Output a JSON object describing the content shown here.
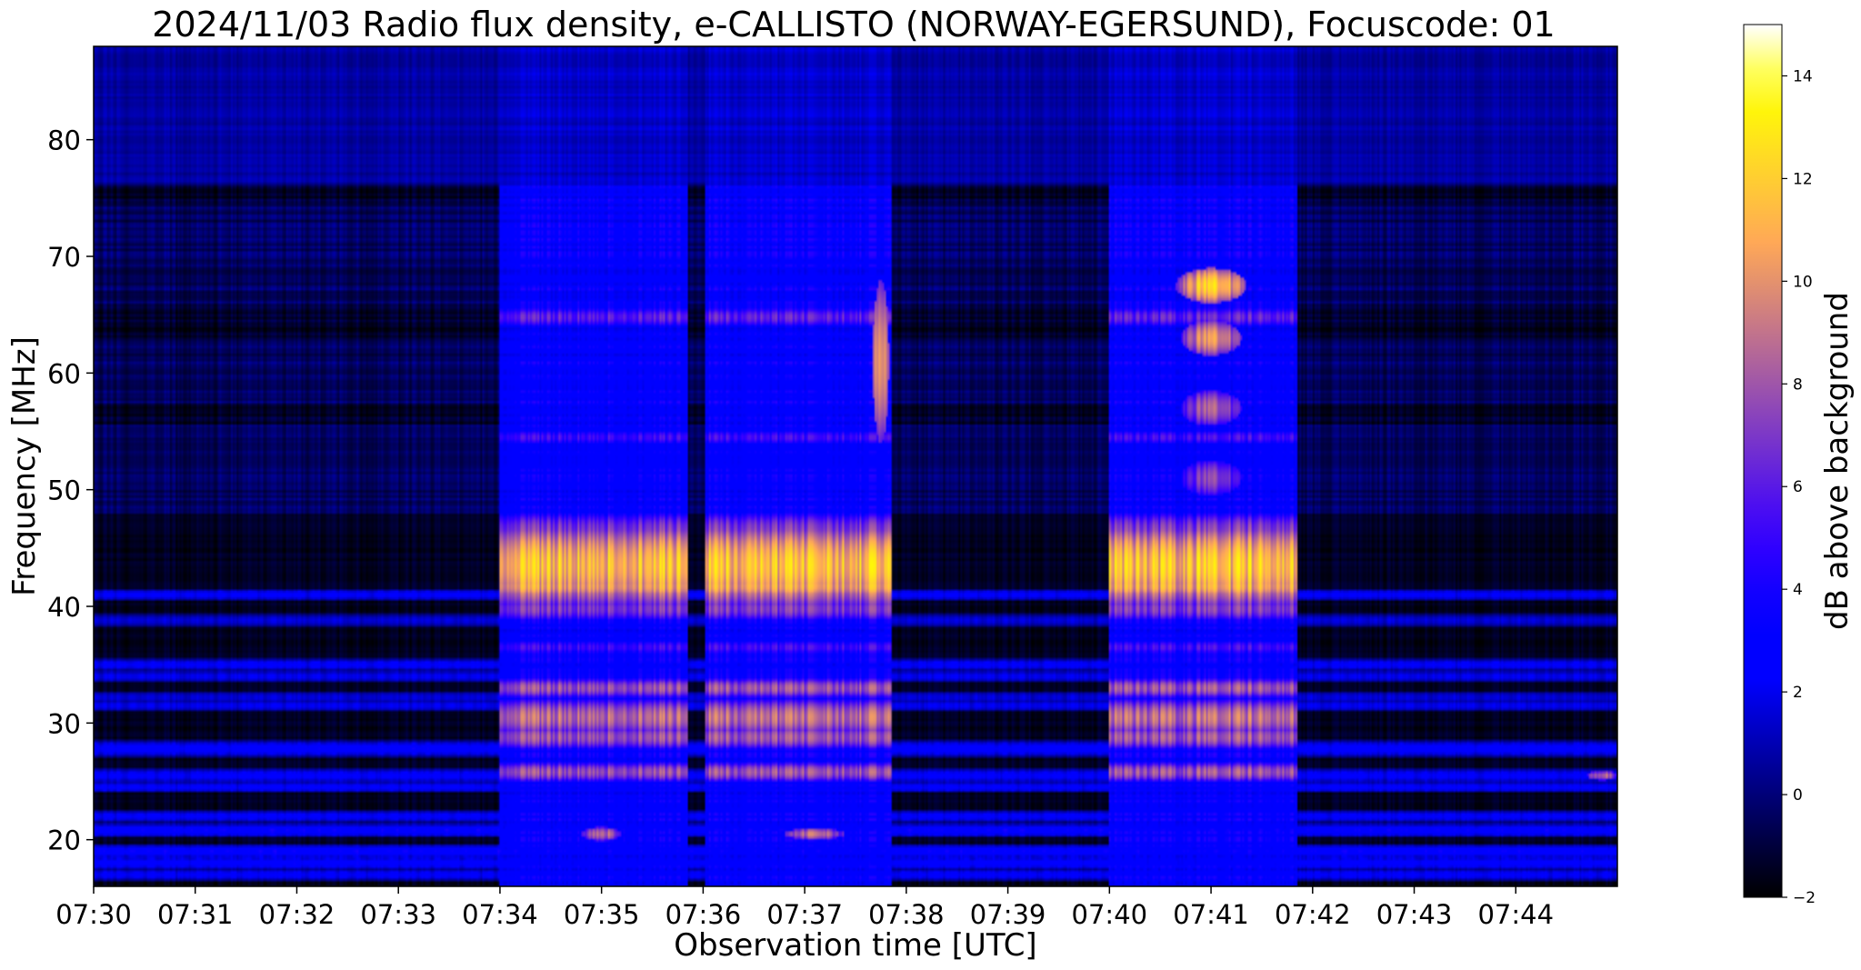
{
  "chart_data": {
    "type": "heatmap",
    "title": "2024/11/03  Radio flux density, e-CALLISTO (NORWAY-EGERSUND), Focuscode: 01",
    "xlabel": "Observation time [UTC]",
    "ylabel": "Frequency [MHz]",
    "colorbar_label": "dB above background",
    "colormap": "gnuplot2",
    "xlim_minutes": [
      450,
      465
    ],
    "ylim": [
      16,
      88
    ],
    "clim": [
      -2,
      15
    ],
    "x_ticks": [
      {
        "value": 450,
        "label": "07:30"
      },
      {
        "value": 451,
        "label": "07:31"
      },
      {
        "value": 452,
        "label": "07:32"
      },
      {
        "value": 453,
        "label": "07:33"
      },
      {
        "value": 454,
        "label": "07:34"
      },
      {
        "value": 455,
        "label": "07:35"
      },
      {
        "value": 456,
        "label": "07:36"
      },
      {
        "value": 457,
        "label": "07:37"
      },
      {
        "value": 458,
        "label": "07:38"
      },
      {
        "value": 459,
        "label": "07:39"
      },
      {
        "value": 460,
        "label": "07:40"
      },
      {
        "value": 461,
        "label": "07:41"
      },
      {
        "value": 462,
        "label": "07:42"
      },
      {
        "value": 463,
        "label": "07:43"
      },
      {
        "value": 464,
        "label": "07:44"
      }
    ],
    "y_ticks": [
      20,
      30,
      40,
      50,
      60,
      70,
      80
    ],
    "colorbar_ticks": [
      -2,
      0,
      2,
      4,
      6,
      8,
      10,
      12,
      14
    ],
    "receiver_on_intervals": [
      {
        "start": 454.0,
        "end": 455.85
      },
      {
        "start": 456.02,
        "end": 457.85
      },
      {
        "start": 460.0,
        "end": 461.85
      }
    ],
    "emission_bands_mhz": [
      {
        "center": 43.5,
        "width": 3.5,
        "db_on": 13
      },
      {
        "center": 41.8,
        "width": 1.2,
        "db_on": 12
      },
      {
        "center": 46.5,
        "width": 1.5,
        "db_on": 8
      },
      {
        "center": 39.8,
        "width": 1.0,
        "db_on": 8
      },
      {
        "center": 33.0,
        "width": 0.8,
        "db_on": 9
      },
      {
        "center": 30.5,
        "width": 1.5,
        "db_on": 10
      },
      {
        "center": 28.8,
        "width": 1.0,
        "db_on": 9
      },
      {
        "center": 25.8,
        "width": 0.8,
        "db_on": 9
      },
      {
        "center": 64.8,
        "width": 0.8,
        "db_on": 7
      },
      {
        "center": 54.5,
        "width": 0.6,
        "db_on": 6
      },
      {
        "center": 36.5,
        "width": 0.6,
        "db_on": 6
      }
    ],
    "bright_patches": [
      {
        "t": 457.75,
        "t_width": 0.08,
        "f": 61,
        "f_width": 14,
        "db": 12
      },
      {
        "t": 461.0,
        "t_width": 0.35,
        "f": 67.5,
        "f_width": 3,
        "db": 13
      },
      {
        "t": 461.0,
        "t_width": 0.3,
        "f": 63.0,
        "f_width": 3,
        "db": 11
      },
      {
        "t": 461.0,
        "t_width": 0.3,
        "f": 57.0,
        "f_width": 3,
        "db": 9
      },
      {
        "t": 461.0,
        "t_width": 0.3,
        "f": 51.0,
        "f_width": 3,
        "db": 8
      },
      {
        "t": 455.0,
        "t_width": 0.2,
        "f": 20.5,
        "f_width": 1.2,
        "db": 10
      },
      {
        "t": 457.1,
        "t_width": 0.3,
        "f": 20.5,
        "f_width": 1.0,
        "db": 10
      },
      {
        "t": 464.85,
        "t_width": 0.15,
        "f": 25.5,
        "f_width": 0.8,
        "db": 10
      }
    ],
    "background_bands_mhz": [
      {
        "center": 41.0,
        "width": 0.5,
        "db": 3
      },
      {
        "center": 38.8,
        "width": 0.5,
        "db": 2
      },
      {
        "center": 35.0,
        "width": 0.5,
        "db": 3
      },
      {
        "center": 34.0,
        "width": 0.5,
        "db": 2.5
      },
      {
        "center": 32.2,
        "width": 0.5,
        "db": 2
      },
      {
        "center": 31.5,
        "width": 0.5,
        "db": 2.5
      },
      {
        "center": 27.8,
        "width": 0.7,
        "db": 3.5
      },
      {
        "center": 25.5,
        "width": 0.6,
        "db": 3
      },
      {
        "center": 24.5,
        "width": 0.5,
        "db": 3
      },
      {
        "center": 22.0,
        "width": 0.5,
        "db": 3
      },
      {
        "center": 20.8,
        "width": 0.6,
        "db": 4
      },
      {
        "center": 19.0,
        "width": 0.6,
        "db": 4
      },
      {
        "center": 18.0,
        "width": 0.6,
        "db": 3.5
      },
      {
        "center": 17.0,
        "width": 0.5,
        "db": 3
      }
    ]
  }
}
